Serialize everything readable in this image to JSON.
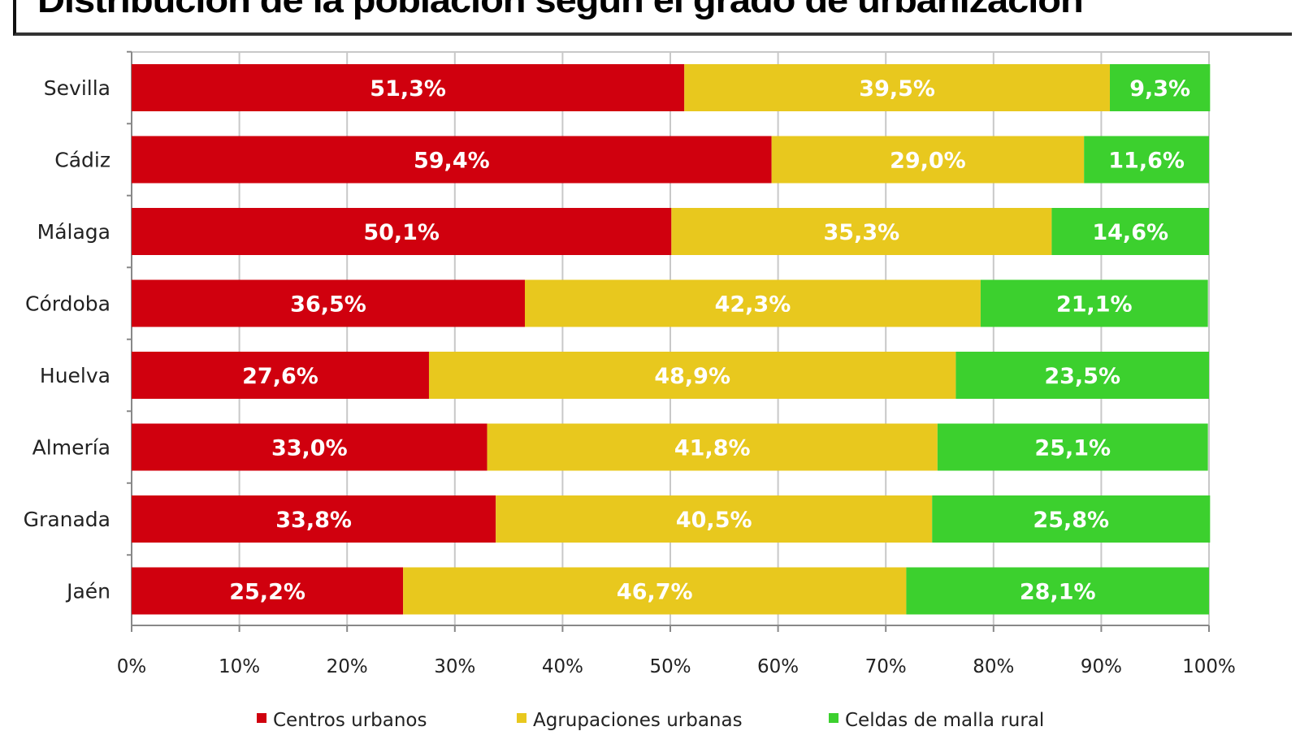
{
  "chart_data": {
    "type": "bar",
    "orientation": "horizontal",
    "stacked": true,
    "title": "Distribución de la población según el grado de urbanización",
    "categories": [
      "Sevilla",
      "Cádiz",
      "Málaga",
      "Córdoba",
      "Huelva",
      "Almería",
      "Granada",
      "Jaén"
    ],
    "series": [
      {
        "name": "Centros urbanos",
        "color": "#d0000e",
        "values": [
          51.3,
          59.4,
          50.1,
          36.5,
          27.6,
          33.0,
          33.8,
          25.2
        ],
        "labels": [
          "51,3%",
          "59,4%",
          "50,1%",
          "36,5%",
          "27,6%",
          "33,0%",
          "33,8%",
          "25,2%"
        ]
      },
      {
        "name": "Agrupaciones urbanas",
        "color": "#e8c81e",
        "values": [
          39.5,
          29.0,
          35.3,
          42.3,
          48.9,
          41.8,
          40.5,
          46.7
        ],
        "labels": [
          "39,5%",
          "29,0%",
          "35,3%",
          "42,3%",
          "48,9%",
          "41,8%",
          "40,5%",
          "46,7%"
        ]
      },
      {
        "name": "Celdas de malla rural",
        "color": "#3cd02e",
        "values": [
          9.3,
          11.6,
          14.6,
          21.1,
          23.5,
          25.1,
          25.8,
          28.1
        ],
        "labels": [
          "9,3%",
          "11,6%",
          "14,6%",
          "21,1%",
          "23,5%",
          "25,1%",
          "25,8%",
          "28,1%"
        ]
      }
    ],
    "xlim": [
      0,
      100
    ],
    "xticks": [
      "0%",
      "10%",
      "20%",
      "30%",
      "40%",
      "50%",
      "60%",
      "70%",
      "80%",
      "90%",
      "100%"
    ],
    "grid": true,
    "legend": "bottom"
  }
}
